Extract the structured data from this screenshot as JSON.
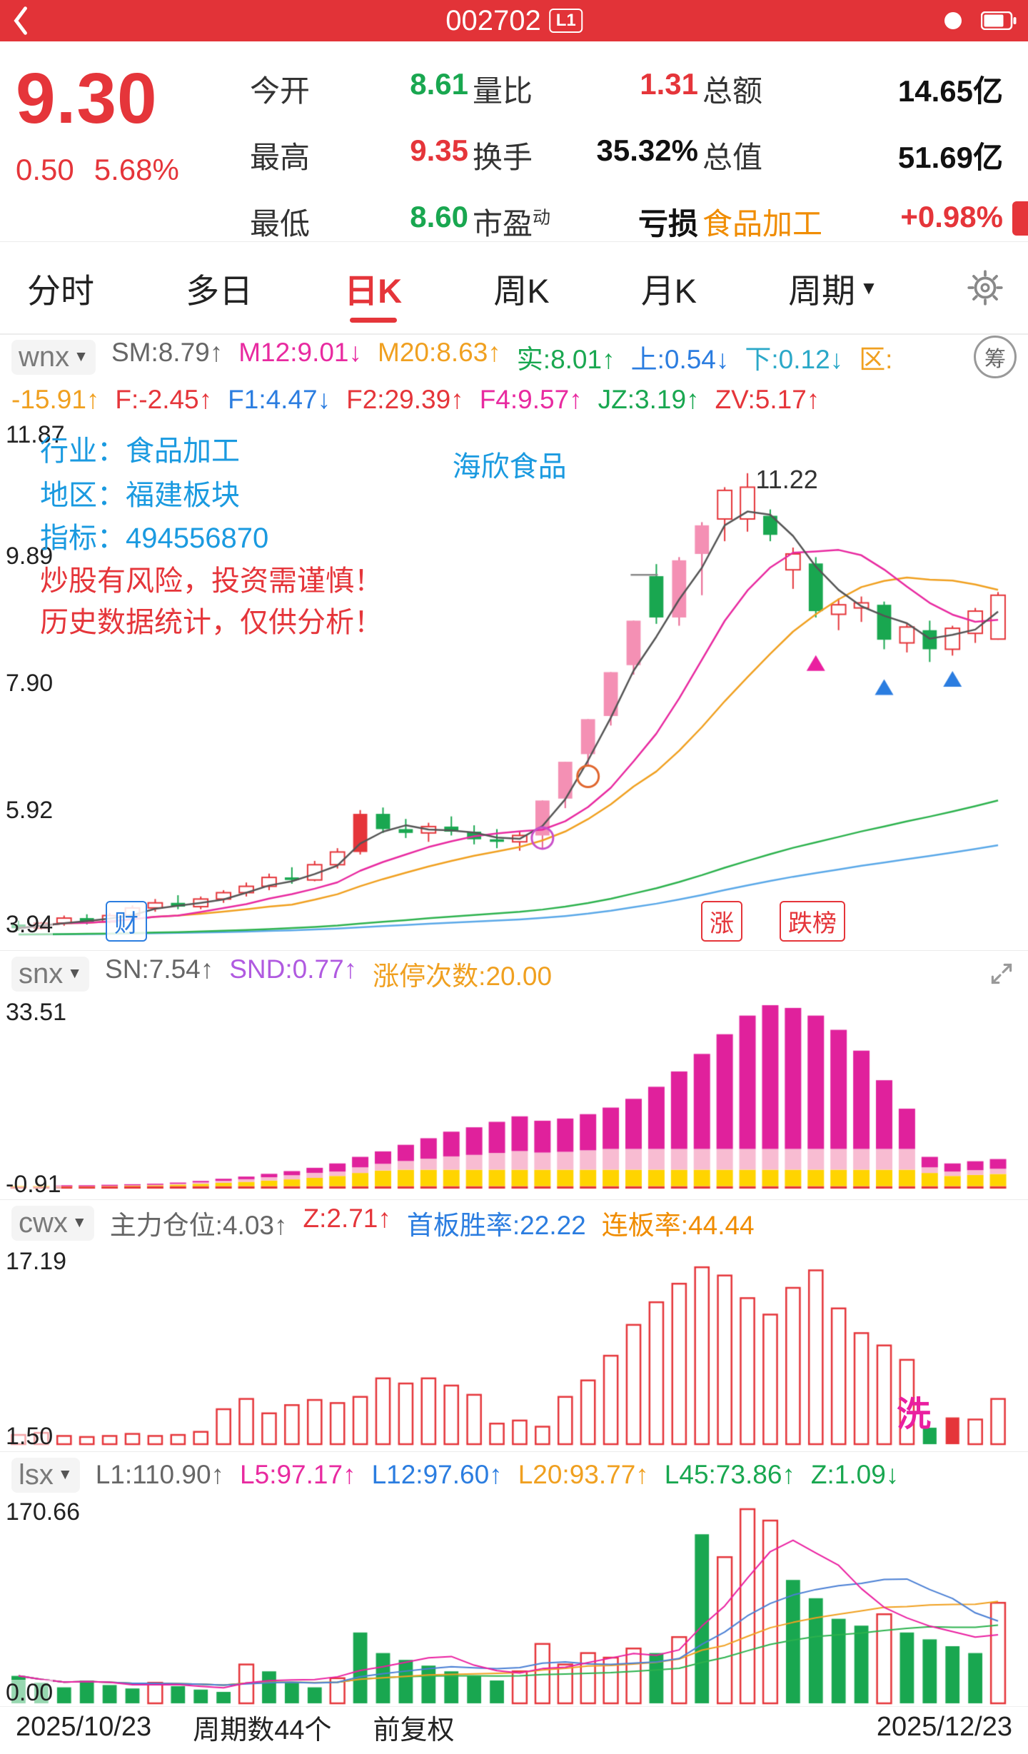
{
  "statusbar": {
    "title": "002702",
    "badge": "L1"
  },
  "icons": {
    "caret_down": "▼"
  },
  "quote": {
    "price": "9.30",
    "change": "0.50",
    "change_pct": "5.68%",
    "cells": [
      {
        "label": "今开",
        "value": "8.61",
        "vc": "#19a750"
      },
      {
        "label": "量比",
        "value": "1.31",
        "vc": "#e5353a"
      },
      {
        "label": "总额",
        "value": "14.65亿",
        "vc": "#111111"
      },
      {
        "label": "最高",
        "value": "9.35",
        "vc": "#e5353a"
      },
      {
        "label": "换手",
        "value": "35.32%",
        "vc": "#111111"
      },
      {
        "label": "总值",
        "value": "51.69亿",
        "vc": "#111111"
      },
      {
        "label": "最低",
        "value": "8.60",
        "vc": "#19a750"
      },
      {
        "label": "市盈",
        "sup": "动",
        "value": "亏损",
        "vc": "#111111"
      },
      {
        "label": "食品加工",
        "lc": "#f08c00",
        "value": "+0.98%",
        "vc": "#e5353a"
      }
    ]
  },
  "tabs": {
    "items": [
      "分时",
      "多日",
      "日K",
      "周K",
      "月K",
      "周期"
    ],
    "active_index": 2
  },
  "panels": {
    "wnx": {
      "chip": "wnx",
      "chip_btn": "筹",
      "line1": [
        {
          "t": "SM:8.79↑",
          "c": "#666666"
        },
        {
          "t": "M12:9.01↓",
          "c": "#e82aa0"
        },
        {
          "t": "M20:8.63↑",
          "c": "#f0a020"
        },
        {
          "t": "实:8.01↑",
          "c": "#19a750"
        },
        {
          "t": "上:0.54↓",
          "c": "#2b7de0"
        },
        {
          "t": "下:0.12↓",
          "c": "#2ba8c8"
        },
        {
          "t": "区:",
          "c": "#f0a020"
        }
      ],
      "line2": [
        {
          "t": "-15.91↑",
          "c": "#f0a020"
        },
        {
          "t": "F:-2.45↑",
          "c": "#e5353a"
        },
        {
          "t": "F1:4.47↓",
          "c": "#2b7de0"
        },
        {
          "t": "F2:29.39↑",
          "c": "#e5353a"
        },
        {
          "t": "F4:9.57↑",
          "c": "#e82aa0"
        },
        {
          "t": "JZ:3.19↑",
          "c": "#19a750"
        },
        {
          "t": "ZV:5.17↑",
          "c": "#e5353a"
        }
      ]
    },
    "snx": {
      "chip": "snx",
      "segments": [
        {
          "t": "SN:7.54↑",
          "c": "#666666"
        },
        {
          "t": "SND:0.77↑",
          "c": "#b05ae0"
        },
        {
          "t": "涨停次数:20.00",
          "c": "#f0a020"
        }
      ]
    },
    "cwx": {
      "chip": "cwx",
      "segments": [
        {
          "t": "主力仓位:4.03↑",
          "c": "#666666"
        },
        {
          "t": "Z:2.71↑",
          "c": "#e5353a"
        },
        {
          "t": "首板胜率:22.22",
          "c": "#2b7de0"
        },
        {
          "t": "连板率:44.44",
          "c": "#f08c00"
        }
      ]
    },
    "lsx": {
      "chip": "lsx",
      "segments": [
        {
          "t": "L1:110.90↑",
          "c": "#666666"
        },
        {
          "t": "L5:97.17↑",
          "c": "#e82aa0"
        },
        {
          "t": "L12:97.60↑",
          "c": "#2b7de0"
        },
        {
          "t": "L20:93.77↑",
          "c": "#f0a020"
        },
        {
          "t": "L45:73.86↑",
          "c": "#19a750"
        },
        {
          "t": "Z:1.09↓",
          "c": "#19a750"
        }
      ]
    }
  },
  "chart_data": [
    {
      "type": "candlestick",
      "name": "daily-kline",
      "periods": 44,
      "ylim": [
        3.94,
        11.87
      ],
      "y_labels": [
        "11.87",
        "9.89",
        "7.90",
        "5.92",
        "3.94"
      ],
      "candles": [
        [
          4.12,
          4.18,
          4.02,
          4.06
        ],
        [
          4.06,
          4.16,
          4.04,
          4.14
        ],
        [
          4.14,
          4.26,
          4.1,
          4.22
        ],
        [
          4.22,
          4.28,
          4.12,
          4.16
        ],
        [
          4.16,
          4.3,
          4.14,
          4.26
        ],
        [
          4.26,
          4.42,
          4.22,
          4.38
        ],
        [
          4.38,
          4.52,
          4.32,
          4.46
        ],
        [
          4.46,
          4.58,
          4.36,
          4.4
        ],
        [
          4.4,
          4.56,
          4.36,
          4.52
        ],
        [
          4.52,
          4.66,
          4.46,
          4.62
        ],
        [
          4.62,
          4.78,
          4.56,
          4.72
        ],
        [
          4.72,
          4.92,
          4.66,
          4.86
        ],
        [
          4.86,
          5.02,
          4.76,
          4.82
        ],
        [
          4.82,
          5.12,
          4.8,
          5.06
        ],
        [
          5.06,
          5.32,
          5.0,
          5.26
        ],
        [
          5.26,
          5.92,
          5.22,
          5.86
        ],
        [
          5.86,
          5.96,
          5.56,
          5.62
        ],
        [
          5.62,
          5.78,
          5.48,
          5.56
        ],
        [
          5.56,
          5.72,
          5.42,
          5.66
        ],
        [
          5.66,
          5.82,
          5.52,
          5.58
        ],
        [
          5.58,
          5.68,
          5.38,
          5.46
        ],
        [
          5.46,
          5.62,
          5.32,
          5.42
        ],
        [
          5.42,
          5.58,
          5.28,
          5.52
        ],
        [
          5.52,
          6.07,
          5.3,
          6.07
        ],
        [
          6.1,
          6.68,
          5.95,
          6.68
        ],
        [
          6.8,
          7.35,
          6.62,
          7.35
        ],
        [
          7.4,
          8.09,
          7.25,
          8.09
        ],
        [
          8.2,
          8.9,
          8.05,
          8.9
        ],
        [
          9.6,
          9.79,
          8.85,
          8.95
        ],
        [
          8.95,
          9.9,
          8.82,
          9.85
        ],
        [
          9.95,
          10.45,
          9.3,
          10.4
        ],
        [
          10.5,
          11.0,
          10.15,
          10.95
        ],
        [
          11.0,
          11.22,
          10.3,
          10.5
        ],
        [
          10.55,
          10.65,
          10.15,
          10.25
        ],
        [
          9.7,
          10.05,
          9.4,
          9.95
        ],
        [
          9.8,
          9.9,
          8.95,
          9.05
        ],
        [
          9.0,
          9.25,
          8.75,
          9.15
        ],
        [
          9.1,
          9.28,
          8.88,
          9.18
        ],
        [
          9.15,
          9.2,
          8.45,
          8.6
        ],
        [
          8.55,
          8.85,
          8.4,
          8.8
        ],
        [
          8.75,
          8.9,
          8.25,
          8.45
        ],
        [
          8.45,
          8.82,
          8.35,
          8.78
        ],
        [
          8.7,
          9.1,
          8.55,
          9.05
        ],
        [
          8.61,
          9.35,
          8.6,
          9.3
        ]
      ],
      "styles": "guuguuuguuuuguurgguggguppppp gppuugugu uguguuu",
      "styles_compact": "guuguuuguuuuguurggugggupppppgppuuguguuguguuu",
      "markers": [
        {
          "t": "circle",
          "i": 23,
          "p": 5.48,
          "c": "#c94fc9"
        },
        {
          "t": "circle",
          "i": 25,
          "p": 6.45,
          "c": "#e0662e"
        },
        {
          "t": "tri",
          "i": 35,
          "p": 8.2,
          "c": "#ea1fa0"
        },
        {
          "t": "tri",
          "i": 38,
          "p": 7.82,
          "c": "#2b7de0"
        },
        {
          "t": "tri",
          "i": 41,
          "p": 7.95,
          "c": "#2b7de0"
        },
        {
          "t": "gap",
          "i": 28,
          "p": 9.62,
          "c": "#888888"
        }
      ],
      "annotations": {
        "industry": "行业：食品加工",
        "region": "地区：福建板块",
        "indicator": "指标：494556870",
        "stock_name": "海欣食品",
        "peak_price": "11.22",
        "warning1": "炒股有风险，投资需谨慎！",
        "warning2": "历史数据统计，仅供分析！",
        "tag_left": "财",
        "tag_mid": "涨",
        "tag_right": "跌榜"
      }
    },
    {
      "type": "bar",
      "name": "snx-stacked-bars",
      "ylim": [
        -0.91,
        33.51
      ],
      "y_labels": [
        "33.51",
        "-0.91"
      ],
      "totals": [
        0.5,
        0.5,
        0.6,
        0.6,
        0.7,
        0.8,
        0.9,
        1.1,
        1.4,
        1.8,
        2.2,
        2.7,
        3.2,
        3.8,
        4.6,
        5.8,
        6.8,
        8.0,
        9.2,
        10.4,
        11.2,
        12.2,
        13.2,
        12.4,
        12.8,
        13.6,
        14.8,
        16.4,
        18.6,
        21.4,
        24.6,
        28.2,
        31.6,
        33.5,
        33.0,
        31.6,
        29.0,
        25.2,
        19.8,
        14.6,
        5.8,
        4.6,
        5.0,
        5.4
      ],
      "seg_colors": {
        "base": "#e5353a",
        "yellow": "#ffd400",
        "pink": "#f8bcd2",
        "magenta": "#e0219c"
      }
    },
    {
      "type": "bar",
      "name": "cwx-position-bars",
      "ylim": [
        0,
        18.6
      ],
      "y_labels": [
        "17.19",
        "1.50"
      ],
      "values": [
        0.9,
        1.1,
        0.8,
        0.7,
        0.8,
        1.0,
        0.8,
        0.9,
        1.2,
        3.4,
        4.4,
        3.0,
        3.8,
        4.3,
        4.0,
        4.6,
        6.4,
        5.9,
        6.4,
        5.7,
        4.8,
        2.0,
        2.3,
        1.7,
        4.6,
        6.2,
        8.6,
        11.6,
        13.8,
        15.6,
        17.2,
        16.4,
        14.2,
        12.6,
        15.2,
        16.9,
        13.2,
        10.8,
        9.6,
        8.2,
        1.6,
        2.6,
        2.4,
        4.4
      ],
      "styles_compact": "hhhhhhhhhhhhhhhhhhhhhhhhhhhhhhhhhhhhhhhhgrhh",
      "annotations": {
        "wash": "洗"
      }
    },
    {
      "type": "bar",
      "name": "lsx-volume-bars",
      "ylim": [
        0,
        175
      ],
      "y_labels": [
        "170.66",
        "0.00"
      ],
      "values": [
        24,
        18,
        14,
        20,
        16,
        13,
        18,
        15,
        12,
        10,
        34,
        28,
        18,
        14,
        22,
        62,
        44,
        38,
        33,
        28,
        24,
        20,
        28,
        52,
        34,
        44,
        40,
        48,
        44,
        58,
        148,
        128,
        170,
        160,
        108,
        92,
        74,
        68,
        78,
        62,
        56,
        50,
        44,
        88
      ],
      "styles_compact": "ggggggrgggrgggrgggggggrrrrrrgrgrrrggggrggggr"
    }
  ],
  "footer": {
    "start_date": "2025/10/23",
    "period_count": "周期数44个",
    "adjust_mode": "前复权",
    "end_date": "2025/12/23"
  }
}
